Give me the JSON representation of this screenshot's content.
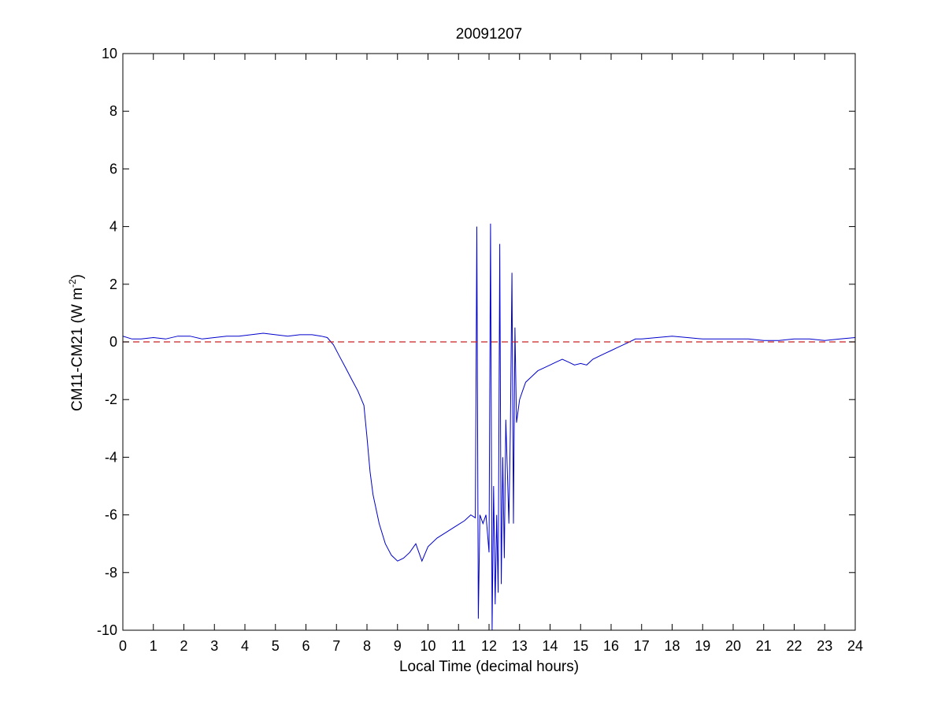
{
  "chart_data": {
    "type": "line",
    "title": "20091207",
    "xlabel": "Local Time (decimal hours)",
    "ylabel": {
      "text": "CM11-CM21 (W m",
      "sup": "-2",
      "suffix": ")"
    },
    "xlim": [
      0,
      24
    ],
    "ylim": [
      -10,
      10
    ],
    "xticks": [
      0,
      1,
      2,
      3,
      4,
      5,
      6,
      7,
      8,
      9,
      10,
      11,
      12,
      13,
      14,
      15,
      16,
      17,
      18,
      19,
      20,
      21,
      22,
      23,
      24
    ],
    "yticks": [
      -10,
      -8,
      -6,
      -4,
      -2,
      0,
      2,
      4,
      6,
      8,
      10
    ],
    "grid": false,
    "series": [
      {
        "color": "#0000cc",
        "x": [
          0,
          0.3,
          0.6,
          1,
          1.4,
          1.8,
          2.2,
          2.6,
          3,
          3.4,
          3.8,
          4.2,
          4.6,
          5,
          5.4,
          5.8,
          6.2,
          6.5,
          6.7,
          6.9,
          7.1,
          7.3,
          7.5,
          7.7,
          7.9,
          8.0,
          8.1,
          8.2,
          8.4,
          8.6,
          8.8,
          9.0,
          9.2,
          9.4,
          9.6,
          9.8,
          10.0,
          10.3,
          10.6,
          10.9,
          11.2,
          11.4,
          11.55,
          11.6,
          11.65,
          11.7,
          11.8,
          11.9,
          12.0,
          12.05,
          12.1,
          12.15,
          12.2,
          12.25,
          12.3,
          12.35,
          12.4,
          12.45,
          12.5,
          12.55,
          12.6,
          12.65,
          12.7,
          12.75,
          12.8,
          12.85,
          12.9,
          13.0,
          13.1,
          13.2,
          13.4,
          13.6,
          13.8,
          14.0,
          14.2,
          14.4,
          14.6,
          14.8,
          15.0,
          15.2,
          15.4,
          15.6,
          15.8,
          16.0,
          16.2,
          16.4,
          16.6,
          16.8,
          17,
          17.5,
          18,
          18.5,
          19,
          19.5,
          20,
          20.5,
          21,
          21.5,
          22,
          22.5,
          23,
          23.5,
          24
        ],
        "y": [
          0.2,
          0.1,
          0.1,
          0.15,
          0.1,
          0.2,
          0.2,
          0.1,
          0.15,
          0.2,
          0.2,
          0.25,
          0.3,
          0.25,
          0.2,
          0.25,
          0.25,
          0.2,
          0.15,
          -0.1,
          -0.5,
          -0.9,
          -1.3,
          -1.7,
          -2.2,
          -3.3,
          -4.5,
          -5.3,
          -6.3,
          -7.0,
          -7.4,
          -7.6,
          -7.5,
          -7.3,
          -7.0,
          -7.6,
          -7.1,
          -6.8,
          -6.6,
          -6.4,
          -6.2,
          -6.0,
          -6.1,
          4.0,
          -9.6,
          -6.0,
          -6.3,
          -6.0,
          -7.3,
          4.1,
          -10,
          -5.0,
          -9.1,
          -6.0,
          -8.7,
          3.4,
          -8.4,
          -4.0,
          -7.5,
          -2.7,
          -4.5,
          -6.3,
          -3.0,
          2.4,
          -6.3,
          0.5,
          -2.8,
          -2.0,
          -1.7,
          -1.4,
          -1.2,
          -1.0,
          -0.9,
          -0.8,
          -0.7,
          -0.6,
          -0.7,
          -0.8,
          -0.75,
          -0.8,
          -0.6,
          -0.5,
          -0.4,
          -0.3,
          -0.2,
          -0.1,
          0.0,
          0.1,
          0.1,
          0.15,
          0.2,
          0.15,
          0.1,
          0.1,
          0.1,
          0.1,
          0.05,
          0.05,
          0.1,
          0.1,
          0.05,
          0.1,
          0.15
        ]
      },
      {
        "color": "#cc2222",
        "dashed": true,
        "x": [
          0,
          24
        ],
        "y": [
          0,
          0
        ]
      }
    ]
  }
}
